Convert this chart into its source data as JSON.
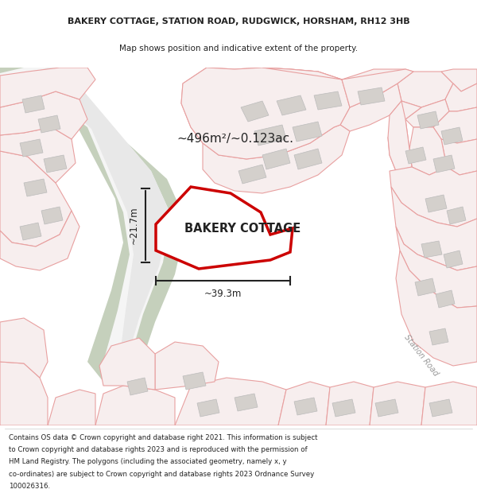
{
  "title_line1": "BAKERY COTTAGE, STATION ROAD, RUDGWICK, HORSHAM, RH12 3HB",
  "title_line2": "Map shows position and indicative extent of the property.",
  "footer_lines": [
    "Contains OS data © Crown copyright and database right 2021. This information is subject",
    "to Crown copyright and database rights 2023 and is reproduced with the permission of",
    "HM Land Registry. The polygons (including the associated geometry, namely x, y",
    "co-ordinates) are subject to Crown copyright and database rights 2023 Ordnance Survey",
    "100026316."
  ],
  "map_bg": "#f2f0ec",
  "green_color": "#c5d0bc",
  "white_road": "#ffffff",
  "plot_face": "#f7eeee",
  "plot_edge": "#e8a0a0",
  "building_face": "#d4d0cc",
  "building_edge": "#bbbbbb",
  "prop_face": "#ffffff",
  "prop_edge": "#cc0000",
  "text_dark": "#222222",
  "text_gray": "#999999",
  "area_text": "~496m²/~0.123ac.",
  "width_text": "~39.3m",
  "height_text": "~21.7m",
  "prop_label": "BAKERY COTTAGE",
  "road_label": "Station Road",
  "title_fs": 8.0,
  "subtitle_fs": 7.5,
  "footer_fs": 6.2,
  "prop_label_fs": 10.5,
  "area_fs": 11.0,
  "dim_fs": 8.5,
  "road_label_fs": 7.0
}
